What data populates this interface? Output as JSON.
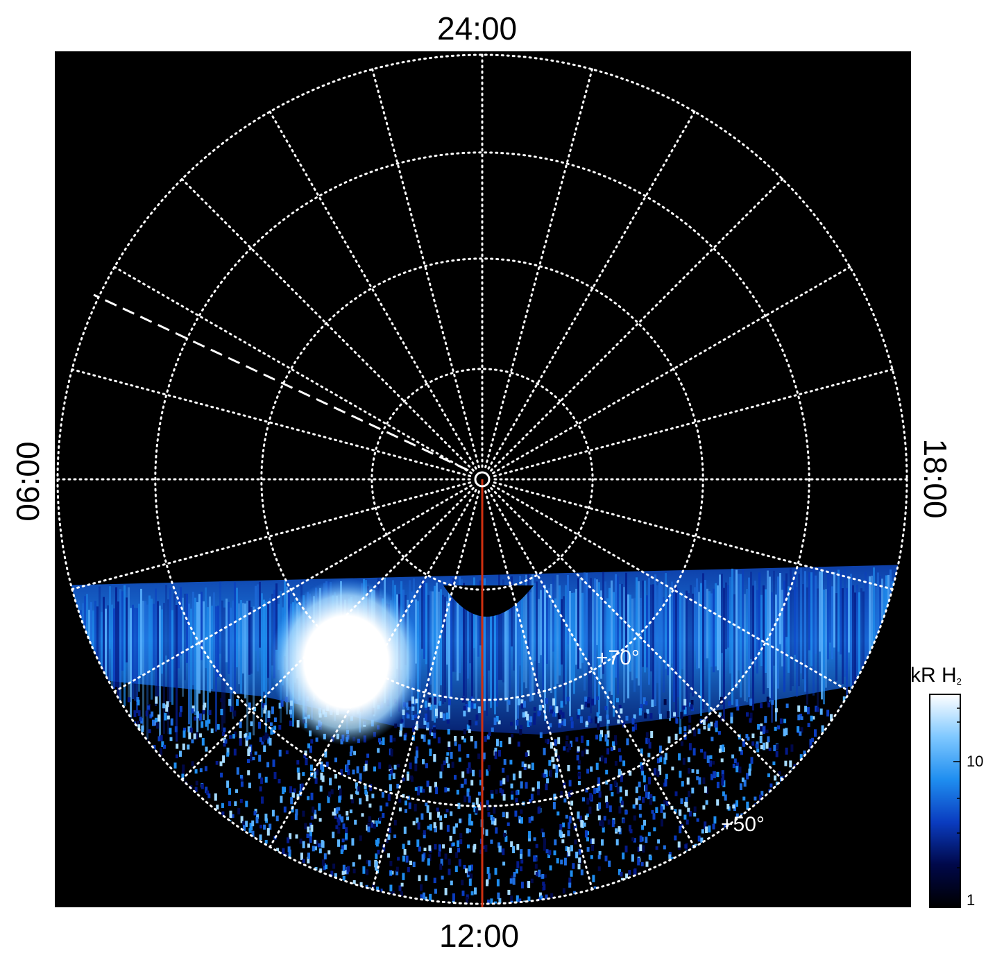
{
  "labels": {
    "top": "24:00",
    "bottom": "12:00",
    "left": "06:00",
    "right": "18:00"
  },
  "latitude_labels": [
    "+70°",
    "+50°"
  ],
  "colorbar": {
    "title_main": "kR H",
    "title_sub": "2",
    "ticks": [
      "10",
      "1"
    ],
    "colors": [
      "#000000",
      "#00084a",
      "#0a3cc0",
      "#1f8ef0",
      "#7fc8ff",
      "#ffffff"
    ]
  },
  "colors": {
    "background": "#000000",
    "grid": "#ffffff",
    "meridian_line": "#d03010"
  }
}
